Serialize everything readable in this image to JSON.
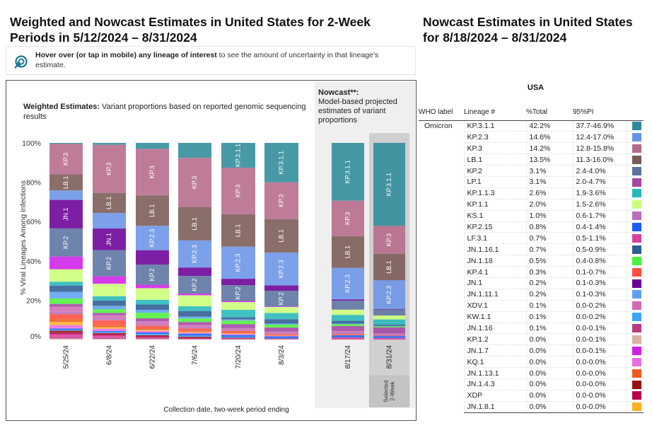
{
  "left_title": "Weighted and Nowcast Estimates in United States for 2-Week Periods in 5/12/2024 – 8/31/2024",
  "right_title": "Nowcast Estimates in United States for 8/18/2024 – 8/31/2024",
  "hover_note": {
    "bold": "Hover over (or tap in mobile) any lineage of interest",
    "rest": " to see the amount of uncertainty in that lineage's estimate.",
    "icon": "cursor-target-icon"
  },
  "weighted_head": {
    "bold": "Weighted Estimates:",
    "rest": " Variant proportions based on reported genomic sequencing results"
  },
  "nowcast_head": {
    "bold": "Nowcast**:",
    "rest": "Model-based projected estimates of variant proportions"
  },
  "selected_label": "Selected\n2-Week",
  "table": {
    "region": "USA",
    "headers": [
      "WHO label",
      "Lineage #",
      "%Total",
      "95%PI"
    ],
    "who_label": "Omicron",
    "rows": [
      {
        "lineage": "KP.3.1.1",
        "total": "42.2%",
        "pi": "37.7-46.9%",
        "color": "#2e8b9a"
      },
      {
        "lineage": "KP.2.3",
        "total": "14.6%",
        "pi": "12.4-17.0%",
        "color": "#6a93e6"
      },
      {
        "lineage": "KP.3",
        "total": "14.2%",
        "pi": "12.8-15.8%",
        "color": "#b56a8b"
      },
      {
        "lineage": "LB.1",
        "total": "13.5%",
        "pi": "11.3-16.0%",
        "color": "#7a5a55"
      },
      {
        "lineage": "KP.2",
        "total": "3.1%",
        "pi": "2.4-4.0%",
        "color": "#5a73a0"
      },
      {
        "lineage": "LP.1",
        "total": "3.1%",
        "pi": "2.0-4.7%",
        "color": "#a347a3"
      },
      {
        "lineage": "KP.1.1.3",
        "total": "2.6%",
        "pi": "1.9-3.6%",
        "color": "#27b8b8"
      },
      {
        "lineage": "KP.1.1",
        "total": "2.0%",
        "pi": "1.5-2.6%",
        "color": "#ccff77"
      },
      {
        "lineage": "KS.1",
        "total": "1.0%",
        "pi": "0.6-1.7%",
        "color": "#b86eb8"
      },
      {
        "lineage": "KP.2.15",
        "total": "0.8%",
        "pi": "0.4-1.4%",
        "color": "#1a5cff"
      },
      {
        "lineage": "LF.3.1",
        "total": "0.7%",
        "pi": "0.5-1.1%",
        "color": "#d6409c"
      },
      {
        "lineage": "JN.1.16.1",
        "total": "0.7%",
        "pi": "0.5-0.9%",
        "color": "#2f5b94"
      },
      {
        "lineage": "JN.1.18",
        "total": "0.5%",
        "pi": "0.4-0.8%",
        "color": "#4cf03a"
      },
      {
        "lineage": "KP.4.1",
        "total": "0.3%",
        "pi": "0.1-0.7%",
        "color": "#ff4d40"
      },
      {
        "lineage": "JN.1",
        "total": "0.2%",
        "pi": "0.1-0.3%",
        "color": "#6a0099"
      },
      {
        "lineage": "JN.1.11.1",
        "total": "0.2%",
        "pi": "0.1-0.3%",
        "color": "#5fa0f0"
      },
      {
        "lineage": "XDV.1",
        "total": "0.1%",
        "pi": "0.0-0.2%",
        "color": "#d26ab6"
      },
      {
        "lineage": "KW.1.1",
        "total": "0.1%",
        "pi": "0.0-0.2%",
        "color": "#38a8ff"
      },
      {
        "lineage": "JN.1.16",
        "total": "0.1%",
        "pi": "0.0-0.1%",
        "color": "#b83a80"
      },
      {
        "lineage": "KP.1.2",
        "total": "0.0%",
        "pi": "0.0-0.1%",
        "color": "#d6b3a3"
      },
      {
        "lineage": "JN.1.7",
        "total": "0.0%",
        "pi": "0.0-0.1%",
        "color": "#d020e8"
      },
      {
        "lineage": "KQ.1",
        "total": "0.0%",
        "pi": "0.0-0.0%",
        "color": "#e86ee0"
      },
      {
        "lineage": "JN.1.13.1",
        "total": "0.0%",
        "pi": "0.0-0.0%",
        "color": "#f05a20"
      },
      {
        "lineage": "JN.1.4.3",
        "total": "0.0%",
        "pi": "0.0-0.0%",
        "color": "#9a1010"
      },
      {
        "lineage": "XDP",
        "total": "0.0%",
        "pi": "0.0-0.0%",
        "color": "#b8004a"
      },
      {
        "lineage": "JN.1.8.1",
        "total": "0.0%",
        "pi": "0.0-0.0%",
        "color": "#ffb020"
      }
    ]
  },
  "chart_data": {
    "type": "bar",
    "stacked": true,
    "ylabel": "% Viral Lineages Among Infections",
    "xlabel": "Collection date, two-week period ending",
    "ylim": [
      0,
      100
    ],
    "yticks": [
      "0%",
      "20%",
      "40%",
      "60%",
      "80%",
      "100%"
    ],
    "categories": [
      "5/25/24",
      "6/8/24",
      "6/22/24",
      "7/6/24",
      "7/20/24",
      "8/3/24",
      "8/17/24",
      "8/31/24"
    ],
    "nowcast_categories": [
      "8/17/24",
      "8/31/24"
    ],
    "selected": "8/31/24",
    "series": [
      {
        "name": "KP.3.1.1",
        "color": "#2e8b9a",
        "values": [
          0.5,
          1,
          3,
          7.6,
          12.6,
          20,
          29.4,
          42.2
        ]
      },
      {
        "name": "KP.3",
        "color": "#b56a8b",
        "values": [
          15.5,
          24.4,
          23.7,
          25,
          23.7,
          18.8,
          18,
          14.2
        ]
      },
      {
        "name": "LB.1",
        "color": "#7a5a55",
        "values": [
          8.2,
          10.2,
          15.5,
          17,
          16.5,
          17,
          16.1,
          13.5
        ]
      },
      {
        "name": "KP.2.3",
        "color": "#6a93e6",
        "values": [
          4.8,
          7.9,
          12.4,
          13.8,
          16.3,
          16.7,
          16.1,
          14.6
        ]
      },
      {
        "name": "JN.1",
        "color": "#6a0099",
        "values": [
          14.5,
          11,
          7.3,
          4.3,
          3.3,
          2.7,
          0.7,
          0.2
        ]
      },
      {
        "name": "KP.2",
        "color": "#5a73a0",
        "values": [
          14.3,
          13.3,
          10.2,
          8.9,
          8,
          8,
          4.4,
          3.1
        ]
      },
      {
        "name": "JN.1.7",
        "color": "#d020e8",
        "values": [
          6.5,
          3.8,
          1.8,
          0.9,
          0.6,
          0.3,
          0.1,
          0
        ]
      },
      {
        "name": "KP.1.1",
        "color": "#ccff77",
        "values": [
          6.3,
          6.3,
          5.9,
          5.6,
          3.9,
          3,
          2.7,
          2.0
        ]
      },
      {
        "name": "KP.1.1.3",
        "color": "#27b8b8",
        "values": [
          2,
          2.2,
          2.4,
          2.4,
          3.8,
          3.2,
          3,
          2.6
        ]
      },
      {
        "name": "JN.1.16.1",
        "color": "#2f5b94",
        "values": [
          3.2,
          2.7,
          2.7,
          2.8,
          1.1,
          2.2,
          1.4,
          0.7
        ]
      },
      {
        "name": "JN.1.11.1",
        "color": "#5fa0f0",
        "values": [
          3.3,
          1.8,
          1.5,
          1,
          0.6,
          0.5,
          0.3,
          0.2
        ]
      },
      {
        "name": "JN.1.18",
        "color": "#4cf03a",
        "values": [
          2.8,
          1.8,
          2.8,
          1.8,
          1.8,
          1.5,
          0.9,
          0.5
        ]
      },
      {
        "name": "LP.1",
        "color": "#a347a3",
        "values": [
          1.5,
          1.2,
          1.5,
          1.6,
          2.0,
          2.2,
          2.6,
          3.1
        ]
      },
      {
        "name": "XDV.1",
        "color": "#d26ab6",
        "values": [
          2.5,
          1.5,
          1.2,
          0.8,
          0.6,
          0.3,
          0.2,
          0.1
        ]
      },
      {
        "name": "KS.1",
        "color": "#b86eb8",
        "values": [
          1.2,
          1,
          1,
          0.9,
          0.8,
          0.8,
          1.2,
          1.0
        ]
      },
      {
        "name": "KP.4.1",
        "color": "#ff4d40",
        "values": [
          2.5,
          2.5,
          1.5,
          1.2,
          1.0,
          0.6,
          0.5,
          0.3
        ]
      },
      {
        "name": "JN.1.13.1",
        "color": "#f05a20",
        "values": [
          1.5,
          1,
          0.7,
          0.5,
          0.3,
          0.2,
          0.1,
          0
        ]
      },
      {
        "name": "JN.1.8.1",
        "color": "#ffb020",
        "values": [
          1.5,
          0.8,
          0.5,
          0.4,
          0.3,
          0.1,
          0.05,
          0
        ]
      },
      {
        "name": "KQ.1",
        "color": "#e86ee0",
        "values": [
          1.8,
          1.2,
          0.8,
          0.6,
          0.5,
          0.3,
          0.1,
          0
        ]
      },
      {
        "name": "KP.2.15",
        "color": "#1a5cff",
        "values": [
          0.6,
          0.5,
          0.8,
          0.9,
          1.0,
          0.9,
          0.9,
          0.8
        ]
      },
      {
        "name": "KW.1.1",
        "color": "#38a8ff",
        "values": [
          0.5,
          0.5,
          0.6,
          0.6,
          0.4,
          0.2,
          0.2,
          0.1
        ]
      },
      {
        "name": "JN.1.4.3",
        "color": "#9a1010",
        "values": [
          1.0,
          0.6,
          0.6,
          0.5,
          0.3,
          0.1,
          0.05,
          0
        ]
      },
      {
        "name": "XDP",
        "color": "#b8004a",
        "values": [
          0.8,
          0.7,
          0.5,
          0.4,
          0.2,
          0.1,
          0.05,
          0
        ]
      },
      {
        "name": "LF.3.1",
        "color": "#d6409c",
        "values": [
          1.8,
          1.2,
          0.6,
          0.3,
          0.3,
          0.3,
          0.8,
          0.7
        ]
      },
      {
        "name": "JN.1.16",
        "color": "#b83a80",
        "values": [
          0.4,
          0.5,
          0.3,
          0.1,
          0.05,
          0,
          0.1,
          0.1
        ]
      },
      {
        "name": "KP.1.2",
        "color": "#d6b3a3",
        "values": [
          0.5,
          0.3,
          0.2,
          0.1,
          0.05,
          0,
          0.05,
          0
        ]
      }
    ]
  }
}
